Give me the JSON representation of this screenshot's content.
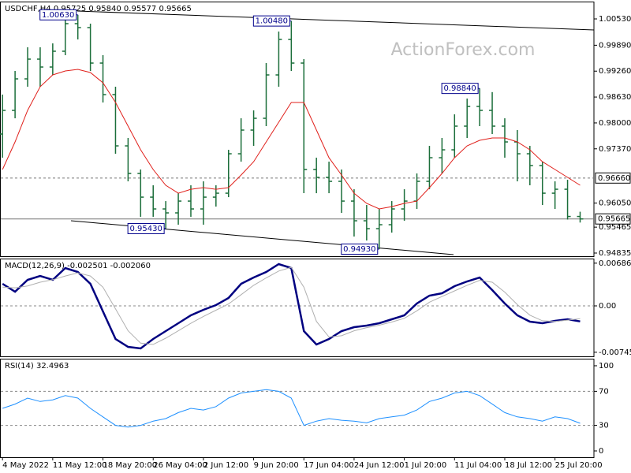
{
  "chart_data": [
    {
      "type": "ohlc",
      "title": "USDCHF,H4 0.95725 0.95840 0.95577 0.95665",
      "watermark": "ActionForex.com",
      "color": "#1b6e3a",
      "xlim": [
        -0.2,
        47.1
      ],
      "ylim": [
        0.94758,
        1.00952
      ],
      "yticks": [
        {
          "value": 1.0053,
          "label": "1.00530"
        },
        {
          "value": 0.9989,
          "label": "0.99890"
        },
        {
          "value": 0.9926,
          "label": "0.99260"
        },
        {
          "value": 0.9863,
          "label": "0.98630"
        },
        {
          "value": 0.98,
          "label": "0.98000"
        },
        {
          "value": 0.9737,
          "label": "0.97370"
        },
        {
          "value": 0.9605,
          "label": "0.96050"
        },
        {
          "value": 0.95465,
          "label": "0.95465"
        },
        {
          "value": 0.94835,
          "label": "0.94835"
        }
      ],
      "open": [
        0.9773,
        0.98305,
        0.99072,
        0.99552,
        0.9936,
        0.99744,
        1.00415,
        1.00319,
        0.99456,
        0.98689,
        0.97442,
        0.96771,
        0.96195,
        0.95908,
        0.95812,
        0.96099,
        0.95908,
        0.96195,
        0.96291,
        0.9725,
        0.97826,
        0.98113,
        0.99168,
        1.00031,
        0.99456,
        0.96867,
        0.96675,
        0.96579,
        0.96099,
        0.9562,
        0.95428,
        0.95524,
        0.95908,
        0.96099,
        0.96579,
        0.97154,
        0.97346,
        0.97922,
        0.98401,
        0.98305,
        0.97922,
        0.97538,
        0.9725,
        0.96963,
        0.96291,
        0.96387,
        0.95725
      ],
      "high": [
        0.98689,
        0.99264,
        0.9984,
        0.9984,
        0.99935,
        1.00607,
        1.0063,
        1.00415,
        0.99648,
        0.98881,
        0.97634,
        0.96867,
        0.96483,
        0.96099,
        0.96291,
        0.96483,
        0.96579,
        0.96483,
        0.97346,
        0.98113,
        0.98305,
        0.99456,
        1.00223,
        1.0048,
        0.99552,
        0.97154,
        0.97058,
        0.96867,
        0.96387,
        0.96004,
        0.95908,
        0.96099,
        0.96387,
        0.96771,
        0.97442,
        0.97634,
        0.98209,
        0.98593,
        0.9884,
        0.9875,
        0.98113,
        0.97826,
        0.97442,
        0.97058,
        0.96579,
        0.96617,
        0.9584
      ],
      "low": [
        0.97154,
        0.98113,
        0.98881,
        0.98881,
        0.99168,
        0.99648,
        1.00031,
        0.99264,
        0.98497,
        0.9725,
        0.96579,
        0.95716,
        0.95716,
        0.9543,
        0.95524,
        0.95716,
        0.95524,
        0.95965,
        0.96195,
        0.97058,
        0.97442,
        0.97922,
        0.98881,
        0.99264,
        0.96291,
        0.96291,
        0.96291,
        0.95812,
        0.95236,
        0.9514,
        0.9493,
        0.95332,
        0.9562,
        0.95908,
        0.96387,
        0.96771,
        0.97154,
        0.97634,
        0.97922,
        0.9773,
        0.97154,
        0.96579,
        0.96483,
        0.96004,
        0.95908,
        0.9565,
        0.95577
      ],
      "close": [
        0.98305,
        0.99072,
        0.99552,
        0.9936,
        0.99744,
        1.00415,
        1.00319,
        0.99456,
        0.98689,
        0.97442,
        0.96771,
        0.96195,
        0.95908,
        0.95812,
        0.96099,
        0.95908,
        0.96195,
        0.96291,
        0.9725,
        0.97826,
        0.98113,
        0.99168,
        1.00031,
        0.99456,
        0.96867,
        0.96675,
        0.96579,
        0.96099,
        0.9562,
        0.95428,
        0.95524,
        0.95908,
        0.96099,
        0.96579,
        0.97154,
        0.97346,
        0.97922,
        0.98401,
        0.98305,
        0.97922,
        0.97538,
        0.9725,
        0.96963,
        0.96291,
        0.96387,
        0.95725,
        0.95665
      ],
      "series": [
        {
          "color": "#e0201b",
          "values": [
            0.96867,
            0.97538,
            0.98305,
            0.98881,
            0.99168,
            0.99264,
            0.99302,
            0.99226,
            0.98977,
            0.98497,
            0.97922,
            0.97346,
            0.96867,
            0.96483,
            0.96291,
            0.96387,
            0.96426,
            0.96387,
            0.96426,
            0.96733,
            0.97058,
            0.97538,
            0.98018,
            0.98497,
            0.98497,
            0.97826,
            0.97154,
            0.96733,
            0.96291,
            0.96042,
            0.95908,
            0.95965,
            0.96042,
            0.96099,
            0.96426,
            0.96771,
            0.97154,
            0.97442,
            0.97576,
            0.97634,
            0.97634,
            0.97538,
            0.97346,
            0.97058,
            0.96867,
            0.96675,
            0.96483
          ]
        }
      ],
      "hlines": [
        {
          "value": 0.9666,
          "label": "0.96660"
        },
        {
          "value": 0.95665,
          "label": "0.95665"
        }
      ],
      "annotations": [
        {
          "bar": 6,
          "value": 1.0063,
          "label": "1.00630"
        },
        {
          "bar": 23,
          "value": 1.0048,
          "label": "1.00480"
        },
        {
          "bar": 13,
          "value": 0.9543,
          "label": "0.95430"
        },
        {
          "bar": 30,
          "value": 0.9493,
          "label": "0.94930"
        },
        {
          "bar": 38,
          "value": 0.9884,
          "label": "0.98840"
        }
      ]
    },
    {
      "type": "line",
      "title": "MACD(12,26,9) -0.002501 -0.002060",
      "ylim": [
        -0.00811,
        0.0076
      ],
      "yticks": [
        0.006861,
        {
          "value": 0,
          "label": "0.00"
        },
        -0.007454
      ],
      "levels": [
        0
      ],
      "series": [
        {
          "color": "#000080",
          "values": [
            0.00355,
            0.00228,
            0.00418,
            0.00481,
            0.00418,
            0.00608,
            0.00545,
            0.00355,
            -0.00089,
            -0.00532,
            -0.00659,
            -0.00684,
            -0.00532,
            -0.00405,
            -0.00279,
            -0.00152,
            -0.00063,
            0.00013,
            0.00127,
            0.00355,
            0.00456,
            0.00545,
            0.00671,
            0.00608,
            -0.00405,
            -0.00621,
            -0.00532,
            -0.00405,
            -0.00342,
            -0.00317,
            -0.00279,
            -0.00215,
            -0.00152,
            0.00038,
            0.00165,
            0.00203,
            0.00317,
            0.00393,
            0.00456,
            0.00253,
            0.00038,
            -0.00152,
            -0.00253,
            -0.00279,
            -0.00241,
            -0.00215,
            -0.002501
          ]
        },
        {
          "color": "#b0b0b0",
          "values": [
            0.003,
            0.0029,
            0.0032,
            0.0038,
            0.0042,
            0.0048,
            0.0053,
            0.0048,
            0.003,
            -0.0005,
            -0.004,
            -0.006,
            -0.0062,
            -0.0052,
            -0.004,
            -0.0028,
            -0.0017,
            -0.0007,
            0.0003,
            0.0018,
            0.0033,
            0.0045,
            0.0056,
            0.0062,
            0.003,
            -0.0025,
            -0.005,
            -0.0048,
            -0.004,
            -0.0035,
            -0.0031,
            -0.0026,
            -0.002,
            -0.0008,
            0.0006,
            0.0015,
            0.0024,
            0.0033,
            0.0041,
            0.0038,
            0.0022,
            0.0002,
            -0.0015,
            -0.0024,
            -0.0025,
            -0.0023,
            -0.00206
          ]
        }
      ]
    },
    {
      "type": "line",
      "title": "RSI(14) 32.4963",
      "ylim": [
        -7.4,
        108.3
      ],
      "yticks": [
        100,
        70,
        30,
        0
      ],
      "levels": [
        70,
        30
      ],
      "xticks": [
        {
          "value": 0,
          "label": "4 May 2022"
        },
        {
          "value": 4,
          "label": "11 May 12:00"
        },
        {
          "value": 8,
          "label": "18 May 20:00"
        },
        {
          "value": 12,
          "label": "26 May 04:00"
        },
        {
          "value": 16,
          "label": "2 Jun 12:00"
        },
        {
          "value": 20,
          "label": "9 Jun 20:00"
        },
        {
          "value": 24,
          "label": "17 Jun 04:00"
        },
        {
          "value": 28,
          "label": "24 Jun 12:00"
        },
        {
          "value": 32,
          "label": "1 Jul 20:00"
        },
        {
          "value": 36,
          "label": "11 Jul 04:00"
        },
        {
          "value": 40,
          "label": "18 Jul 12:00"
        },
        {
          "value": 44,
          "label": "25 Jul 20:00"
        }
      ],
      "series": [
        {
          "color": "#1e90ff",
          "values": [
            50,
            55,
            62,
            58,
            60,
            65,
            62,
            50,
            40,
            30,
            28,
            30,
            35,
            38,
            45,
            50,
            48,
            52,
            62,
            68,
            70,
            72,
            70,
            62,
            30,
            35,
            38,
            36,
            35,
            33,
            38,
            40,
            42,
            48,
            58,
            62,
            68,
            70,
            65,
            55,
            45,
            40,
            38,
            35,
            40,
            38,
            32.4963
          ]
        }
      ]
    }
  ]
}
